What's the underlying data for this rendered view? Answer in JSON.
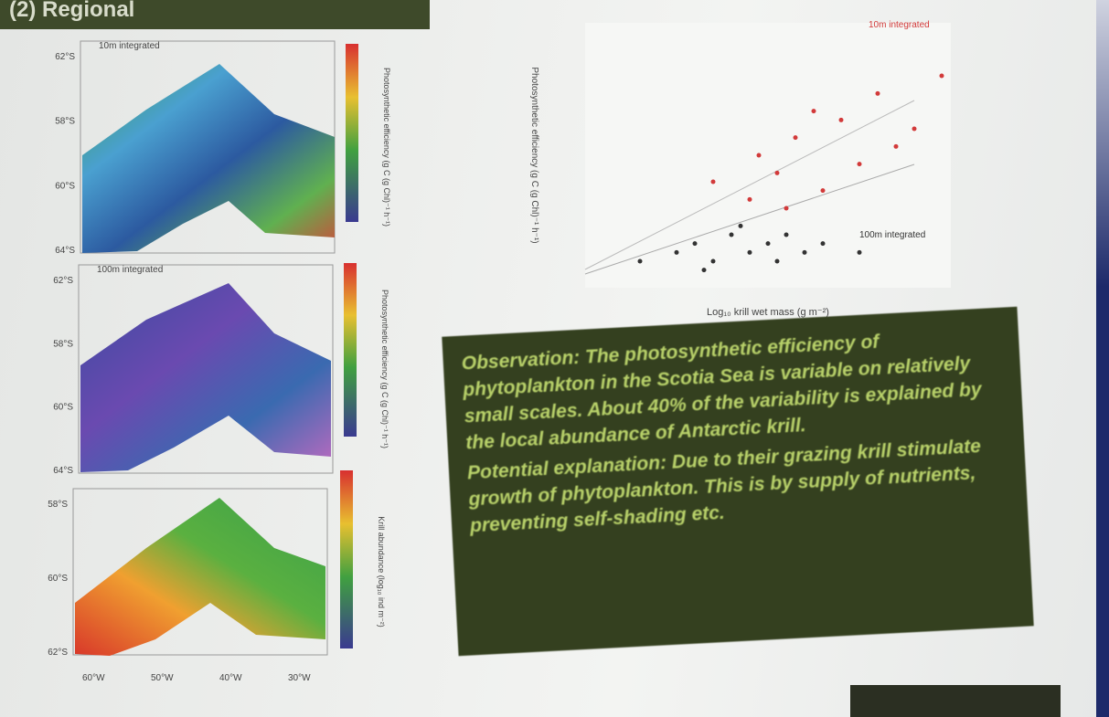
{
  "header": {
    "title": "(2) Regional"
  },
  "maps": [
    {
      "label": "10m integrated",
      "colorbar_label": "Photosynthetic efficiency (g C (g Chl)⁻¹ h⁻¹)",
      "lat_labels": [
        "62°S",
        "58°S",
        "60°S",
        "64°S"
      ]
    },
    {
      "label": "100m integrated",
      "colorbar_label": "Photosynthetic efficiency (g C (g Chl)⁻¹ h⁻¹)",
      "lat_labels": [
        "62°S",
        "58°S",
        "60°S",
        "64°S"
      ]
    },
    {
      "colorbar_label": "Krill abundance (log₁₀ ind m⁻²)",
      "lat_labels": [
        "58°S",
        "60°S",
        "62°S"
      ],
      "lon_labels": [
        "60°W",
        "50°W",
        "40°W",
        "30°W"
      ]
    }
  ],
  "scatter": {
    "type": "scatter",
    "x_label": "Log₁₀ krill wet mass (g m⁻²)",
    "y_label": "Photosynthetic efficiency (g C (g Chl)⁻¹ h⁻¹)",
    "xlim": [
      -1,
      3
    ],
    "ylim": [
      0,
      30
    ],
    "series": [
      {
        "name": "10m integrated",
        "color": "#d23a3a",
        "x": [
          0.4,
          0.9,
          1.1,
          1.3,
          1.5,
          1.8,
          2.2,
          2.6,
          2.9,
          1.6,
          2.0,
          0.8,
          2.4,
          1.2
        ],
        "y": [
          12,
          15,
          13,
          17,
          20,
          19,
          22,
          18,
          24,
          11,
          14,
          10,
          16,
          9
        ]
      },
      {
        "name": "100m integrated",
        "color": "#333333",
        "x": [
          -0.4,
          0.0,
          0.2,
          0.4,
          0.6,
          0.8,
          1.0,
          1.2,
          1.4,
          0.3,
          0.7,
          1.1,
          1.6,
          2.0
        ],
        "y": [
          3,
          4,
          5,
          3,
          6,
          4,
          5,
          6,
          4,
          2,
          7,
          3,
          5,
          4
        ]
      }
    ]
  },
  "observation": {
    "paragraphs": [
      "Observation: The photosynthetic efficiency of phytoplankton in the Scotia Sea is variable on relatively small scales. About 40% of the variability is explained by the local abundance of Antarctic krill.",
      "Potential explanation: Due to their grazing krill stimulate growth of phytoplankton. This is by supply of nutrients, preventing self-shading etc."
    ]
  }
}
